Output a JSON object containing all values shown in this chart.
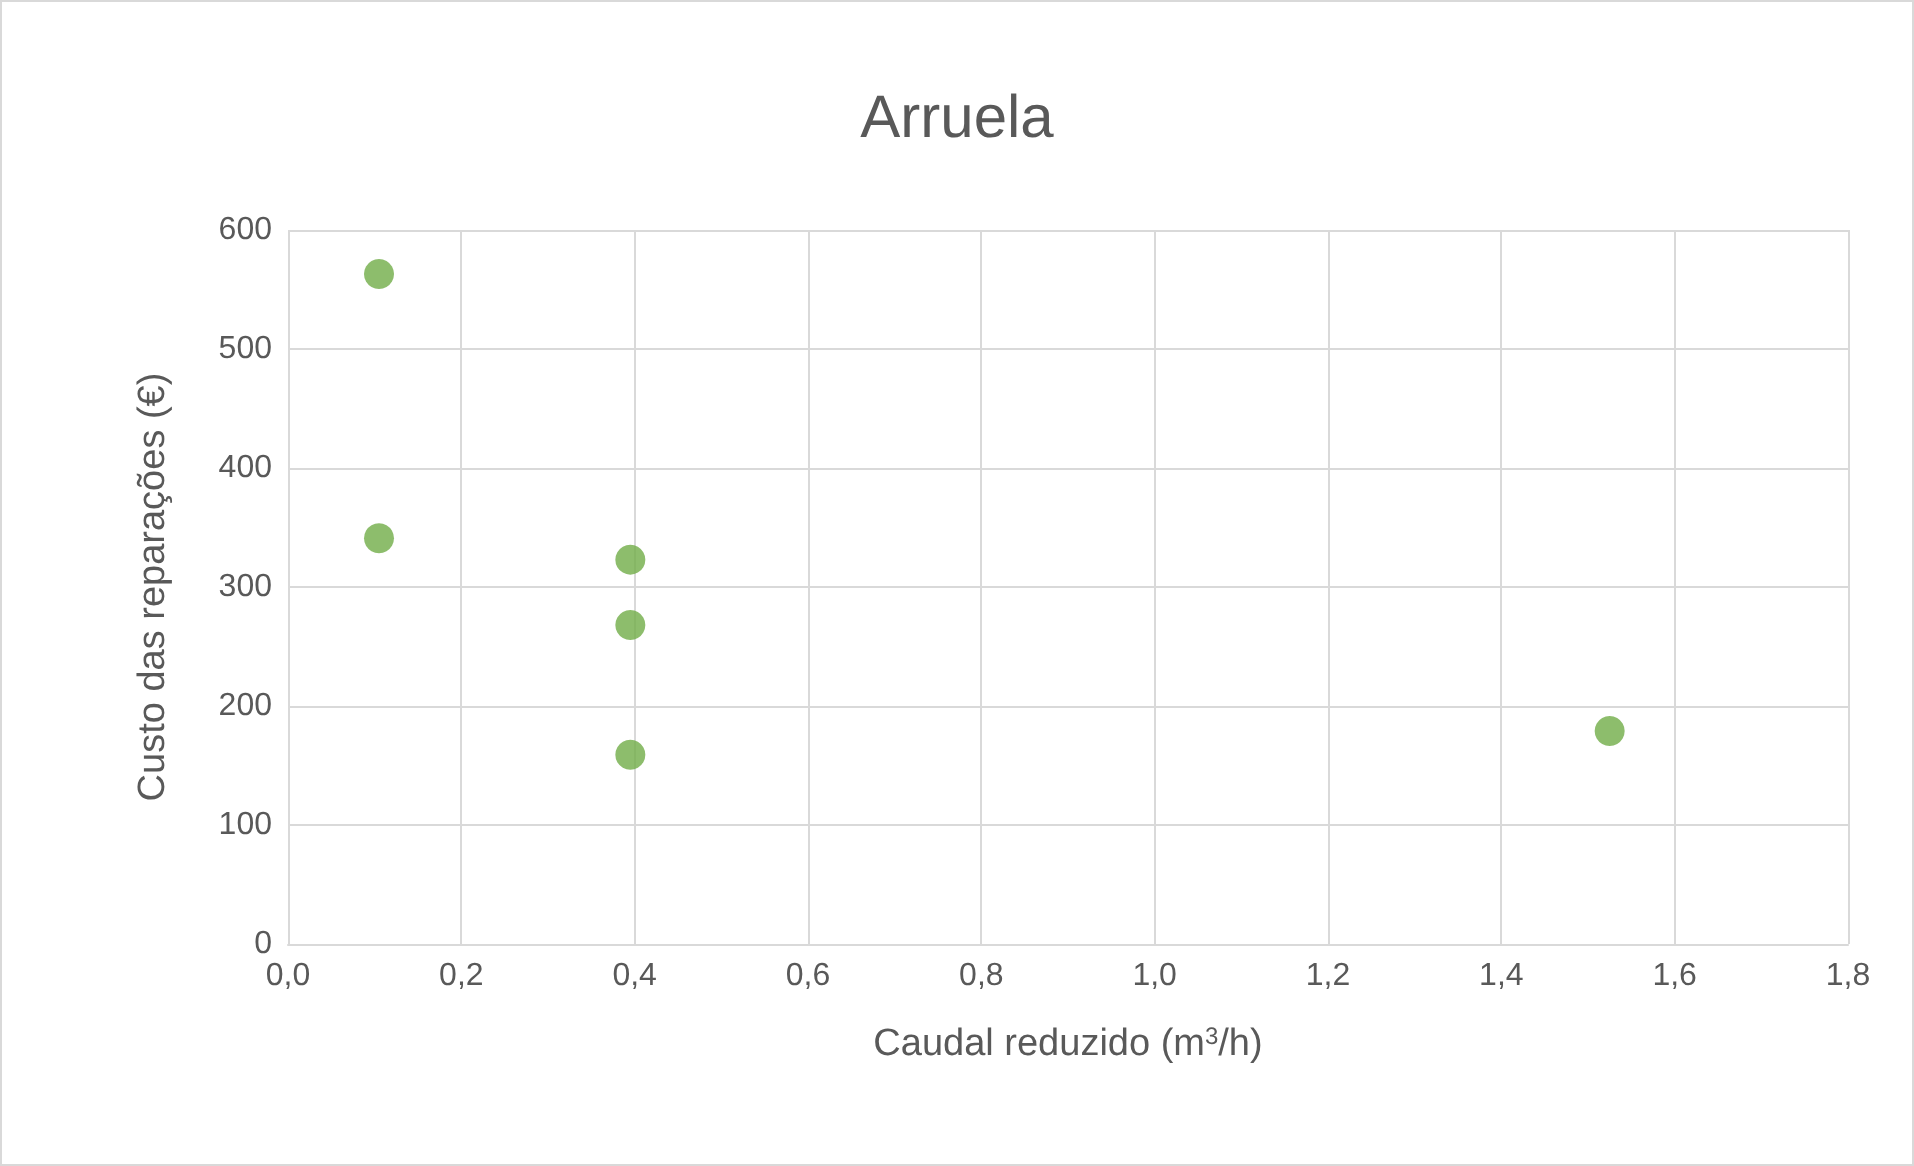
{
  "chart_data": {
    "type": "scatter",
    "title": "Arruela",
    "xlabel": "Caudal reduzido (m$^{3}$/h)",
    "ylabel": "Custo das reparações (€)",
    "x": [
      0.105,
      0.105,
      0.395,
      0.395,
      0.395,
      1.525
    ],
    "values": [
      563,
      341,
      323,
      268,
      159,
      179
    ],
    "color": "#70ad47",
    "marker": "circle",
    "grid": true,
    "xlim": [
      0,
      1.8
    ],
    "xticks": [
      {
        "value": 0,
        "label": "0,0"
      },
      {
        "value": 0.2,
        "label": "0,2"
      },
      {
        "value": 0.4,
        "label": "0,4"
      },
      {
        "value": 0.6,
        "label": "0,6"
      },
      {
        "value": 0.8,
        "label": "0,8"
      },
      {
        "value": 1,
        "label": "1,0"
      },
      {
        "value": 1.2,
        "label": "1,2"
      },
      {
        "value": 1.4,
        "label": "1,4"
      },
      {
        "value": 1.6,
        "label": "1,6"
      },
      {
        "value": 1.8,
        "label": "1,8"
      }
    ],
    "ylim": [
      0,
      600
    ],
    "yticks": [
      0,
      100,
      200,
      300,
      400,
      500,
      600
    ]
  }
}
